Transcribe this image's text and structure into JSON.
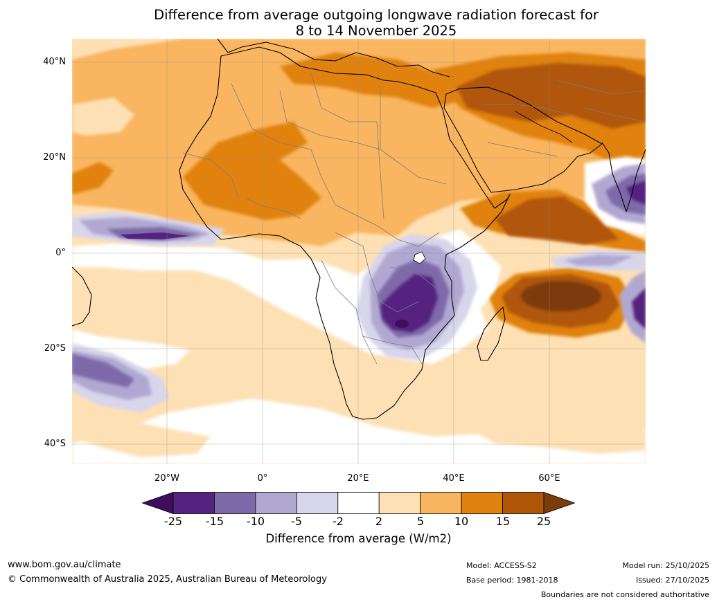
{
  "title": {
    "line1": "Difference from average outgoing longwave radiation forecast for",
    "line2": "8 to 14 November 2025"
  },
  "map": {
    "lat_labels": [
      "40°N",
      "20°N",
      "0°",
      "20°S",
      "40°S"
    ],
    "lon_labels": [
      "20°W",
      "0°",
      "20°E",
      "40°E",
      "60°E"
    ]
  },
  "colorbar": {
    "ticks": [
      "-25",
      "-15",
      "-10",
      "-5",
      "-2",
      "2",
      "5",
      "10",
      "15",
      "25"
    ],
    "label": "Difference from average (W/m2)",
    "colors": [
      "#3f0d5c",
      "#55237f",
      "#7e6aa8",
      "#b1a8d2",
      "#d7d6ea",
      "#ffffff",
      "#fee0b5",
      "#f9b55f",
      "#e0820f",
      "#b05607",
      "#7c3b0a"
    ]
  },
  "footer": {
    "website": "www.bom.gov.au/climate",
    "copyright": "© Commonwealth of Australia 2025, Australian Bureau of Meteorology",
    "model": "Model: ACCESS-S2",
    "base_period": "Base period: 1981-2018",
    "model_run": "Model run: 25/10/2025",
    "issued": "Issued: 27/10/2025",
    "disclaimer": "Boundaries are not considered authoritative"
  }
}
